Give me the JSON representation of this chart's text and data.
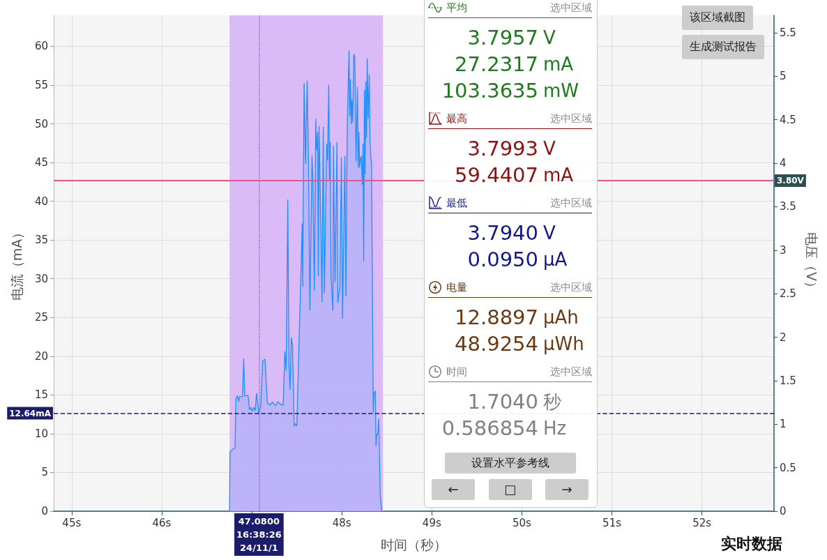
{
  "chart_data": [
    {
      "type": "area",
      "color": "#1e90ff",
      "x": [
        46.753,
        46.758,
        46.78,
        46.814,
        46.824,
        46.84,
        46.855,
        46.865,
        46.897,
        46.91,
        46.922,
        46.96,
        46.974,
        46.99,
        47.005,
        47.02,
        47.039,
        47.052,
        47.078,
        47.1,
        47.121,
        47.147,
        47.173,
        47.2,
        47.23,
        47.26,
        47.29,
        47.32,
        47.349,
        47.367,
        47.382,
        47.4,
        47.413,
        47.426,
        47.439,
        47.452,
        47.471,
        47.486,
        47.5,
        47.537,
        47.56,
        47.565,
        47.581,
        47.597,
        47.615,
        47.628,
        47.645,
        47.669,
        47.68,
        47.695,
        47.711,
        47.72,
        47.732,
        47.739,
        47.747,
        47.77,
        47.78,
        47.794,
        47.806,
        47.832,
        47.842,
        47.855,
        47.863,
        47.871,
        47.88,
        47.901,
        47.907,
        47.925,
        47.946,
        47.955,
        47.978,
        47.995,
        48.008,
        48.034,
        48.045,
        48.06,
        48.08,
        48.088,
        48.096,
        48.105,
        48.112,
        48.12,
        48.134,
        48.145,
        48.158,
        48.173,
        48.182,
        48.19,
        48.198,
        48.207,
        48.217,
        48.227,
        48.235,
        48.243,
        48.251,
        48.258,
        48.266,
        48.274,
        48.282,
        48.292,
        48.305,
        48.313,
        48.323,
        48.33,
        48.349,
        48.357,
        48.367,
        48.372,
        48.38,
        48.388,
        48.398,
        48.411,
        48.426,
        48.444
      ],
      "values": [
        0,
        7.7,
        7.9,
        8.2,
        14.5,
        14.9,
        14.2,
        14.8,
        14.8,
        19.7,
        14.9,
        14.9,
        13.1,
        13.4,
        12.9,
        13.4,
        13.0,
        15.2,
        12.6,
        13.7,
        19.4,
        19.6,
        14.0,
        13.7,
        14.1,
        13.6,
        14.1,
        13.8,
        13.7,
        20.6,
        18.2,
        40.2,
        19.0,
        15.7,
        22.4,
        21.5,
        11.0,
        11.3,
        11.0,
        26.8,
        37.1,
        29.0,
        55.2,
        44.9,
        55.5,
        47.0,
        26.0,
        45.9,
        42.0,
        28.5,
        50.6,
        46.6,
        48.9,
        30.4,
        49.7,
        34.9,
        27.0,
        49.6,
        28.2,
        47.4,
        45.3,
        55.0,
        42.8,
        47.6,
        30.4,
        25.9,
        47.1,
        29.6,
        47.6,
        26.9,
        29.0,
        45.6,
        24.9,
        45.8,
        27.8,
        49.4,
        59.4,
        51.0,
        55.7,
        50.0,
        53.1,
        50.3,
        59.0,
        58.4,
        45.2,
        54.7,
        44.4,
        48.9,
        44.4,
        45.5,
        45.8,
        42.2,
        47.4,
        32.3,
        54.3,
        43.5,
        55.4,
        48.2,
        58.4,
        50.7,
        56.3,
        47.9,
        45.5,
        45.0,
        12.8,
        15.2,
        15.4,
        15.5,
        8.4,
        9.9,
        9.9,
        11.9,
        2.1,
        0
      ],
      "xlim": [
        44.8,
        52.8
      ],
      "xticks": [
        {
          "value": 45,
          "label": "45s"
        },
        {
          "value": 46,
          "label": "46s"
        },
        {
          "value": 47,
          "label": null
        },
        {
          "value": 48,
          "label": "48s"
        },
        {
          "value": 49,
          "label": "49s"
        },
        {
          "value": 50,
          "label": "50s"
        },
        {
          "value": 51,
          "label": "51s"
        },
        {
          "value": 52,
          "label": "52s"
        }
      ],
      "ylim": [
        0,
        64
      ],
      "yticks": [
        0,
        5,
        10,
        15,
        20,
        25,
        30,
        35,
        40,
        45,
        50,
        55,
        60
      ],
      "y2lim": [
        0,
        5.7
      ],
      "y2ticks": [
        0,
        0.5,
        1,
        1.5,
        2,
        2.5,
        3,
        3.5,
        4,
        4.5,
        5,
        5.5
      ],
      "xlabel": "时间（秒）",
      "ylabel": "电流（mA）",
      "y2label": "电压（V）",
      "grid": true,
      "bands": [
        {
          "axis": "x",
          "from": 46.753,
          "to": 48.457,
          "color": "#d7b4f6"
        }
      ],
      "ref_lines": [
        {
          "axis": "x",
          "value": 47.08,
          "label": "47.0800\n16:38:26\n24/11/1",
          "color": "#8a6cc8",
          "line_style": "dotted"
        },
        {
          "axis": "y",
          "value": 12.64,
          "label": "12.64mA",
          "color": "#1c1c6e",
          "line_style": "dashed"
        },
        {
          "axis": "y2",
          "value": 3.8,
          "label": "3.80V",
          "color": "#ef4f8b"
        }
      ],
      "annotations": [
        "该区域截图",
        "生成测试报告",
        "实时数据"
      ]
    },
    {
      "type": "other",
      "colors": [
        "#1d7a1d",
        "#8e1010",
        "#12188c",
        "#6b3a14",
        "#808080"
      ],
      "annotations": [
        "平均",
        "选中区域",
        "3.7957 V",
        "27.2317 mA",
        "103.3635 mW",
        "最高",
        "选中区域",
        "3.7993 V",
        "59.4407 mA",
        "最低",
        "选中区域",
        "3.7940 V",
        "0.0950 µA",
        "电量",
        "选中区域",
        "12.8897 µAh",
        "48.9254 µWh",
        "时间",
        "选中区域",
        "1.7040 秒",
        "0.586854 Hz",
        "设置水平参考线",
        "←",
        "□",
        "→"
      ]
    }
  ]
}
